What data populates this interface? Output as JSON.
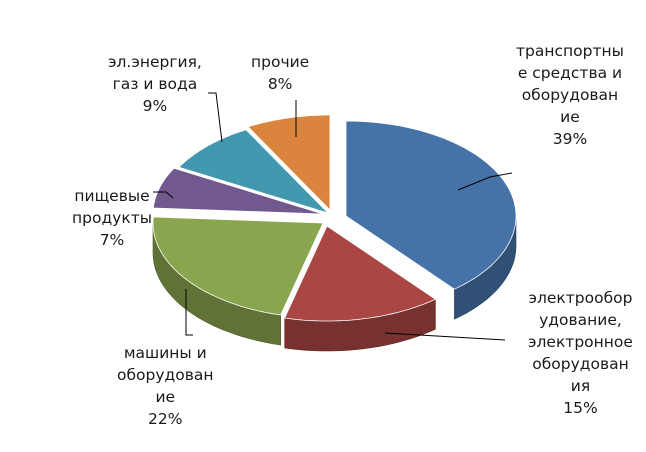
{
  "chart_data": {
    "type": "pie",
    "style": "3d-exploded",
    "slices": [
      {
        "label": [
          "транспортны",
          "е средства и",
          "оборудован",
          "ие"
        ],
        "value": 39,
        "pct": "39%",
        "color": "#4572A7"
      },
      {
        "label": [
          "электрообор",
          "удование,",
          "электронное",
          "оборудован",
          "ия"
        ],
        "value": 15,
        "pct": "15%",
        "color": "#AA4643"
      },
      {
        "label": [
          "машины и",
          "оборудован",
          "ие"
        ],
        "value": 22,
        "pct": "22%",
        "color": "#89A54E"
      },
      {
        "label": [
          "пищевые",
          "продукты"
        ],
        "value": 7,
        "pct": "7%",
        "color": "#71588F"
      },
      {
        "label": [
          "эл.энергия,",
          "газ и вода"
        ],
        "value": 9,
        "pct": "9%",
        "color": "#4198AF"
      },
      {
        "label": [
          "прочие"
        ],
        "value": 8,
        "pct": "8%",
        "color": "#DB843D"
      }
    ]
  }
}
